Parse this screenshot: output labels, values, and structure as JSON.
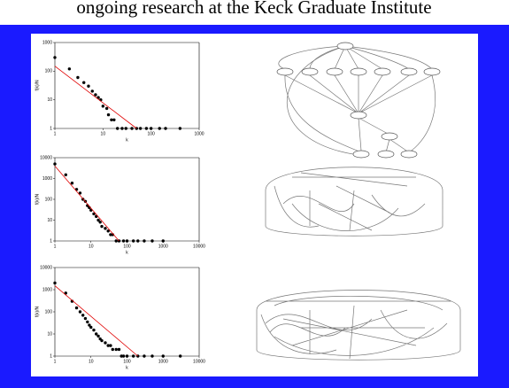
{
  "header_text": "ongoing research at the Keck Graduate Institute",
  "chart_data": [
    {
      "type": "scatter",
      "xlabel": "k",
      "ylabel": "f(k)/N",
      "log_x": true,
      "log_y": true,
      "xlim": [
        1,
        1000
      ],
      "xticks": [
        1,
        10,
        100,
        1000
      ],
      "ylim": [
        1,
        1000
      ],
      "yticks": [
        1,
        10,
        100,
        1000
      ],
      "color": "#000000",
      "fit_color": "#e00000",
      "x": [
        1,
        2,
        3,
        4,
        5,
        6,
        7,
        8,
        9,
        10,
        12,
        13,
        15,
        17,
        20,
        25,
        30,
        40,
        50,
        60,
        80,
        100,
        150,
        200,
        400
      ],
      "y": [
        300,
        120,
        60,
        40,
        30,
        20,
        15,
        12,
        10,
        6,
        5,
        3,
        2,
        2,
        1,
        1,
        1,
        1,
        1,
        1,
        1,
        1,
        1,
        1,
        1
      ],
      "fit_x": [
        1,
        50
      ],
      "fit_y": [
        150,
        1
      ]
    },
    {
      "type": "scatter",
      "xlabel": "k",
      "ylabel": "f(k)/N",
      "log_x": true,
      "log_y": true,
      "xlim": [
        1,
        10000
      ],
      "xticks": [
        1,
        10,
        100,
        1000,
        10000
      ],
      "ylim": [
        1,
        10000
      ],
      "yticks": [
        1,
        10,
        100,
        1000,
        10000
      ],
      "color": "#000000",
      "fit_color": "#e00000",
      "x": [
        1,
        2,
        3,
        4,
        5,
        6,
        7,
        8,
        9,
        10,
        12,
        14,
        16,
        18,
        20,
        25,
        30,
        35,
        40,
        50,
        60,
        80,
        100,
        150,
        200,
        300,
        500,
        1000
      ],
      "y": [
        5000,
        1500,
        600,
        300,
        200,
        100,
        80,
        50,
        40,
        30,
        20,
        15,
        10,
        8,
        5,
        4,
        3,
        2,
        2,
        1,
        1,
        1,
        1,
        1,
        1,
        1,
        1,
        1
      ],
      "fit_x": [
        1,
        60
      ],
      "fit_y": [
        4000,
        1
      ]
    },
    {
      "type": "scatter",
      "xlabel": "k",
      "ylabel": "f(k)/N",
      "log_x": true,
      "log_y": true,
      "xlim": [
        1,
        10000
      ],
      "xticks": [
        1,
        10,
        100,
        1000,
        10000
      ],
      "ylim": [
        1,
        10000
      ],
      "yticks": [
        1,
        10,
        100,
        1000,
        10000
      ],
      "color": "#000000",
      "fit_color": "#e00000",
      "x": [
        1,
        2,
        3,
        4,
        5,
        6,
        7,
        8,
        9,
        10,
        12,
        14,
        16,
        18,
        20,
        25,
        30,
        35,
        40,
        50,
        60,
        70,
        80,
        100,
        150,
        200,
        300,
        500,
        1000,
        3000
      ],
      "y": [
        2000,
        700,
        300,
        150,
        100,
        70,
        50,
        35,
        25,
        20,
        15,
        10,
        8,
        6,
        5,
        4,
        3,
        3,
        2,
        2,
        2,
        1,
        1,
        1,
        1,
        1,
        1,
        1,
        1,
        1
      ],
      "fit_x": [
        1,
        200
      ],
      "fit_y": [
        1500,
        1
      ]
    }
  ]
}
